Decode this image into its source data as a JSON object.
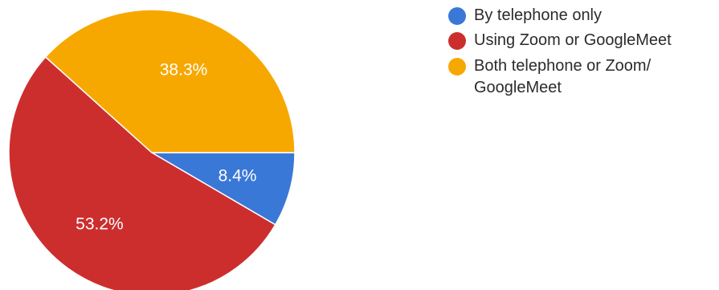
{
  "chart_data": {
    "type": "pie",
    "slices": [
      {
        "name": "By telephone only",
        "value": 8.4,
        "label": "8.4%",
        "color": "#3a78d8"
      },
      {
        "name": "Using Zoom or GoogleMeet",
        "value": 53.2,
        "label": "53.2%",
        "color": "#cc2e2e"
      },
      {
        "name": "Both telephone or Zoom/\nGoogleMeet",
        "value": 38.3,
        "label": "38.3%",
        "color": "#f7a800"
      }
    ],
    "legend_position": "top-right"
  }
}
